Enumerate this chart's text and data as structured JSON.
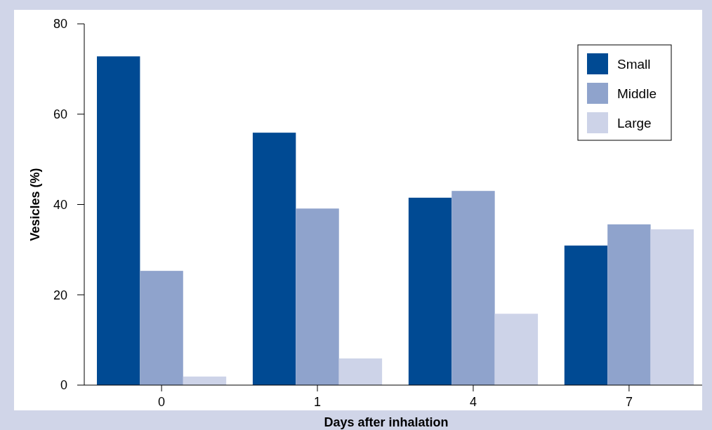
{
  "chart_data": {
    "type": "bar",
    "xlabel": "Days after inhalation",
    "ylabel": "Vesicles (%)",
    "categories": [
      "0",
      "1",
      "4",
      "7"
    ],
    "series": [
      {
        "name": "Small",
        "color": "#004a93",
        "values": [
          72.8,
          55.9,
          41.5,
          30.9
        ]
      },
      {
        "name": "Middle",
        "color": "#8fa3cc",
        "values": [
          25.3,
          39.1,
          43.0,
          35.6
        ]
      },
      {
        "name": "Large",
        "color": "#cdd3e8",
        "values": [
          1.9,
          5.9,
          15.8,
          34.5
        ]
      }
    ],
    "ylim": [
      0,
      80
    ],
    "yticks": [
      0,
      20,
      40,
      60,
      80
    ],
    "grid": false,
    "legend": "top right"
  }
}
